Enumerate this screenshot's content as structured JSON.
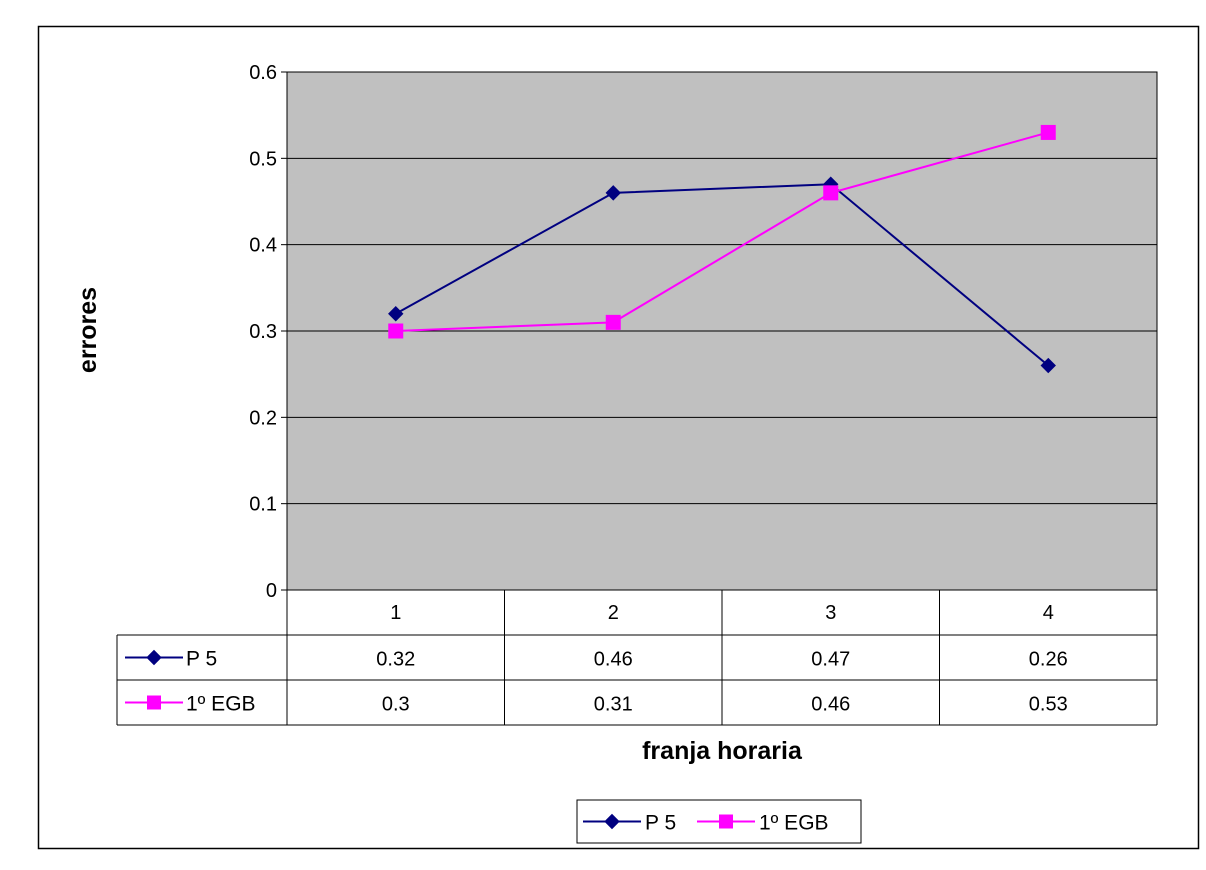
{
  "colors": {
    "plot_bg": "#C0C0C0",
    "grid": "#000000",
    "border": "#000000",
    "series_p5": "#000080",
    "series_egb": "#FF00FF"
  },
  "chart_data": {
    "type": "line",
    "title": "",
    "xlabel": "franja horaria",
    "ylabel": "errores",
    "categories": [
      "1",
      "2",
      "3",
      "4"
    ],
    "ylim": [
      0,
      0.6
    ],
    "yticks": [
      "0",
      "0.1",
      "0.2",
      "0.3",
      "0.4",
      "0.5",
      "0.6"
    ],
    "grid": true,
    "legend_position": "bottom",
    "data_table": true,
    "series": [
      {
        "name": "P 5",
        "marker": "diamond",
        "color": "#000080",
        "values": [
          0.32,
          0.46,
          0.47,
          0.26
        ],
        "labels": [
          "0.32",
          "0.46",
          "0.47",
          "0.26"
        ]
      },
      {
        "name": "1º EGB",
        "marker": "square",
        "color": "#FF00FF",
        "values": [
          0.3,
          0.31,
          0.46,
          0.53
        ],
        "labels": [
          "0.3",
          "0.31",
          "0.46",
          "0.53"
        ]
      }
    ]
  }
}
